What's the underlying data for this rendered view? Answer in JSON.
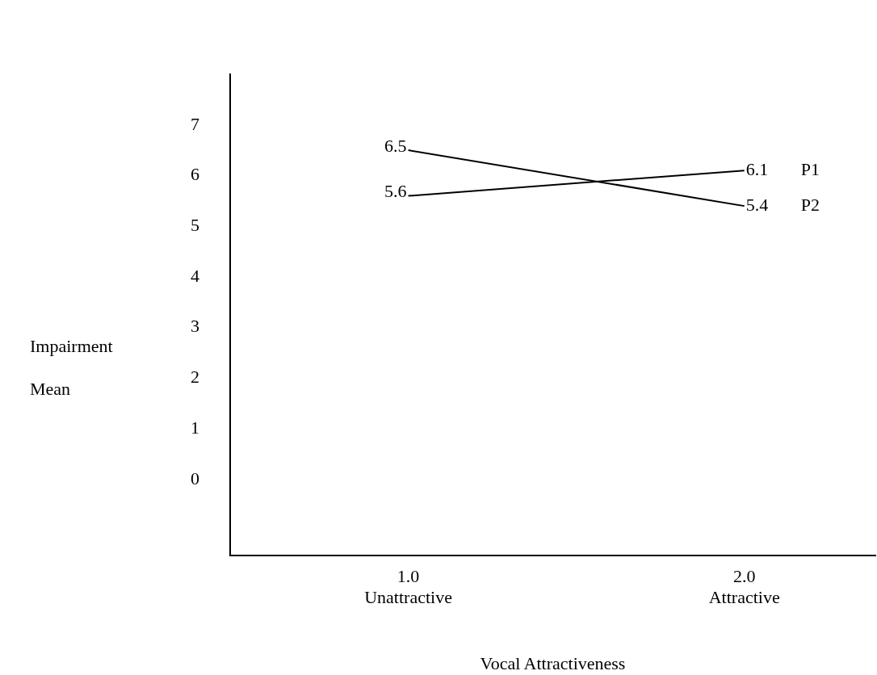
{
  "chart_data": {
    "type": "line",
    "xlabel": "Vocal Attractiveness",
    "ylabel": "Impairment Mean",
    "x": [
      1,
      2
    ],
    "series": [
      {
        "name": "P1",
        "color": "#000000",
        "values": [
          5.6,
          6.1
        ]
      },
      {
        "name": "P2",
        "color": "#000000",
        "values": [
          6.5,
          5.4
        ]
      }
    ],
    "xlim": [
      0.47,
      2.39
    ],
    "xticks": [
      {
        "value": 1,
        "label": "1.0\nUnattractive"
      },
      {
        "value": 2,
        "label": "2.0\nAttractive"
      }
    ],
    "ylim": [
      -1.5,
      8
    ],
    "yticks": [
      0,
      1,
      2,
      3,
      4,
      5,
      6,
      7
    ],
    "grid": false,
    "legend": false,
    "marker": "none",
    "line_style": "solid",
    "data_labels": true
  }
}
